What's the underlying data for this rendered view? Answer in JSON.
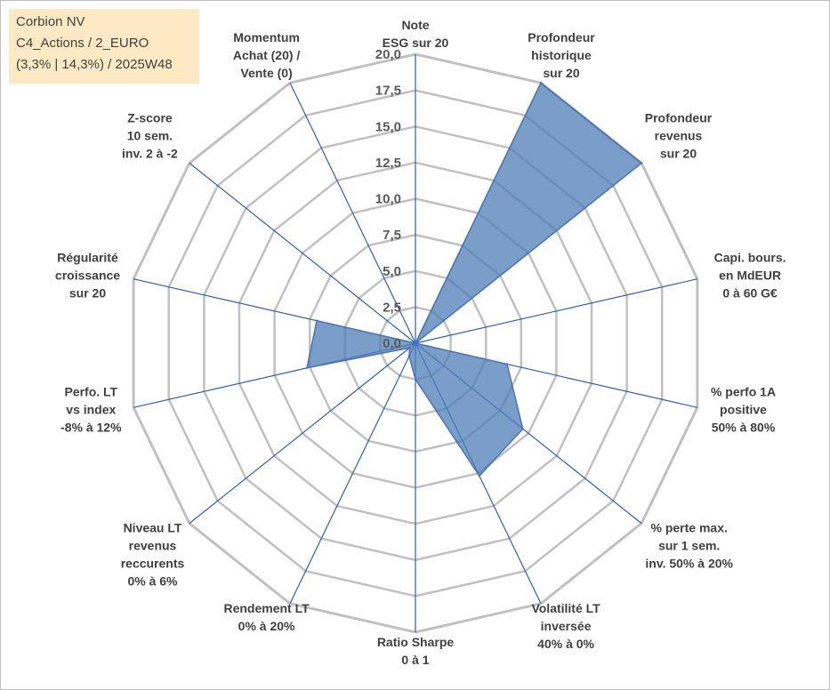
{
  "info_box": {
    "line1": "Corbion NV",
    "line2": "C4_Actions / 2_EURO",
    "line3": "(3,3% | 14,3%) / 2025W48"
  },
  "colors": {
    "fill": "#4f7db5",
    "fill_opacity": 0.75,
    "series_line": "#4a72b8",
    "axis_line": "#2f5fb3",
    "grid": "#c0c0c0",
    "box": "#fde9c4"
  },
  "chart_data": {
    "type": "radar",
    "rmax": 20,
    "tick_step": 2.5,
    "tick_labels": [
      "0,0",
      "2,5",
      "5,0",
      "7,5",
      "10,0",
      "12,5",
      "15,0",
      "17,5",
      "20,0"
    ],
    "grid": true,
    "legend": "none",
    "axes": [
      "Note\nESG sur 20",
      "Profondeur\nhistorique\nsur 20",
      "Profondeur\nrevenus\nsur 20",
      "Capi. bours.\nen MdEUR\n0 à 60 G€",
      "% perfo 1A\npositive\n50% à 80%",
      "% perte max.\nsur 1 sem.\ninv. 50% à 20%",
      "Volatilité LT\ninversée\n40% à 0%",
      "Ratio Sharpe\n0 à 1",
      "Rendement LT\n0% à 20%",
      "Niveau LT\nrevenus\nreccurents\n0% à 6%",
      "Perfo. LT\nvs index\n-8% à 12%",
      "Régularité\ncroissance\nsur 20",
      "Z-score\n10 sem.\ninv. 2 à -2",
      "Momentum\nAchat (20) /\nVente (0)"
    ],
    "series": [
      {
        "values": [
          0,
          20,
          20,
          0,
          6.5,
          9.5,
          10.2,
          2.5,
          1.0,
          0.5,
          7.7,
          7.0,
          0,
          0
        ]
      }
    ]
  }
}
